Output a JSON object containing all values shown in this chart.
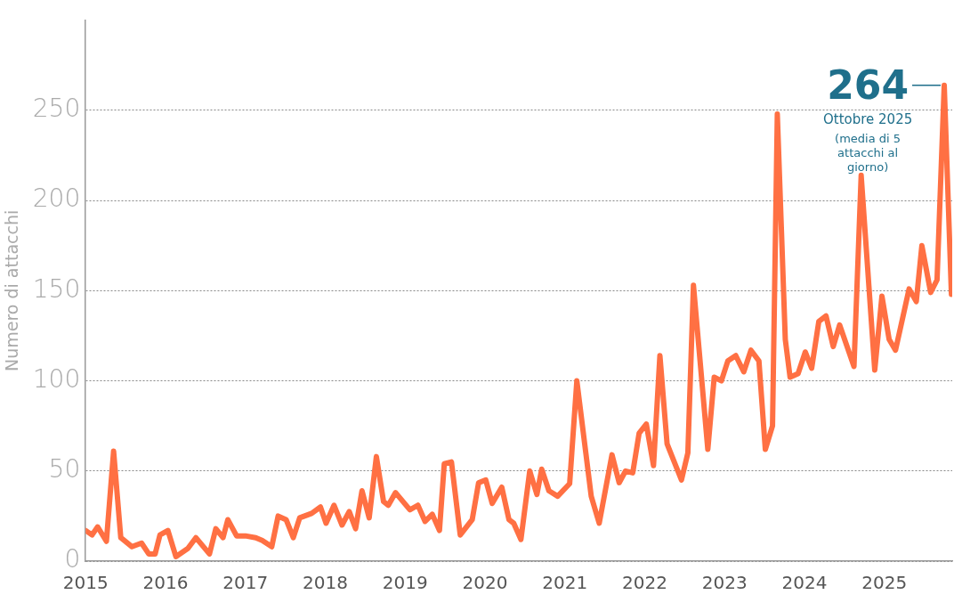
{
  "chart_data": {
    "type": "line",
    "ylabel": "Numero di attacchi",
    "x": [
      2015.0,
      2015.08,
      2015.15,
      2015.26,
      2015.35,
      2015.44,
      2015.58,
      2015.7,
      2015.79,
      2015.87,
      2015.93,
      2016.03,
      2016.13,
      2016.28,
      2016.38,
      2016.55,
      2016.63,
      2016.72,
      2016.78,
      2016.89,
      2017.0,
      2017.13,
      2017.21,
      2017.33,
      2017.41,
      2017.51,
      2017.6,
      2017.68,
      2017.83,
      2017.94,
      2018.01,
      2018.11,
      2018.21,
      2018.3,
      2018.38,
      2018.46,
      2018.55,
      2018.64,
      2018.73,
      2018.79,
      2018.88,
      2019.06,
      2019.16,
      2019.25,
      2019.34,
      2019.43,
      2019.49,
      2019.58,
      2019.69,
      2019.84,
      2019.92,
      2020.01,
      2020.09,
      2020.21,
      2020.3,
      2020.36,
      2020.45,
      2020.56,
      2020.65,
      2020.71,
      2020.8,
      2020.91,
      2021.06,
      2021.15,
      2021.33,
      2021.43,
      2021.59,
      2021.68,
      2021.76,
      2021.85,
      2021.93,
      2022.02,
      2022.11,
      2022.19,
      2022.28,
      2022.46,
      2022.54,
      2022.61,
      2022.79,
      2022.87,
      2022.96,
      2023.04,
      2023.14,
      2023.24,
      2023.33,
      2023.43,
      2023.51,
      2023.6,
      2023.66,
      2023.76,
      2023.82,
      2023.92,
      2024.01,
      2024.09,
      2024.18,
      2024.27,
      2024.36,
      2024.44,
      2024.62,
      2024.71,
      2024.88,
      2024.97,
      2025.06,
      2025.14,
      2025.31,
      2025.4,
      2025.47,
      2025.58,
      2025.66,
      2025.75,
      2025.84
    ],
    "series": [
      {
        "color": "#ff7043",
        "values": [
          17,
          14.5,
          19,
          11,
          61,
          13,
          8,
          10,
          4,
          4,
          14.5,
          17,
          2.5,
          7,
          13,
          4,
          18,
          13,
          23,
          14,
          14,
          13,
          11.5,
          8,
          25,
          23,
          13,
          24,
          26.5,
          30,
          21,
          31,
          20,
          27.5,
          18,
          39,
          24,
          58,
          33,
          31,
          38,
          28.5,
          31,
          22,
          26,
          17,
          54,
          55,
          14.5,
          23,
          43.5,
          45,
          32,
          41,
          23,
          21,
          12,
          50,
          37,
          51,
          39,
          36,
          43,
          100,
          36,
          21,
          59,
          43.5,
          50,
          49,
          71,
          76,
          53,
          114,
          65,
          45,
          60,
          153,
          62,
          102,
          100,
          111,
          114,
          105,
          117,
          111,
          62,
          75,
          248,
          123,
          102,
          104,
          116,
          107,
          133,
          136,
          119,
          131,
          108,
          214,
          106,
          147,
          123,
          117,
          151,
          144,
          175,
          149,
          156,
          264,
          148
        ]
      }
    ],
    "xlim": [
      2015,
      2025.85
    ],
    "xticks": [
      2015,
      2016,
      2017,
      2018,
      2019,
      2020,
      2021,
      2022,
      2023,
      2024,
      2025
    ],
    "ylim": [
      0,
      300
    ],
    "yticks": [
      0,
      50,
      100,
      150,
      200,
      250
    ],
    "grid": "y",
    "legend": false,
    "marker": "none",
    "line_style": "solid",
    "annotations": [
      {
        "text": "264",
        "x": 2025.75,
        "y": 264
      },
      "Ottobre 2025",
      "(media di 5 attacchi al giorno)"
    ]
  }
}
